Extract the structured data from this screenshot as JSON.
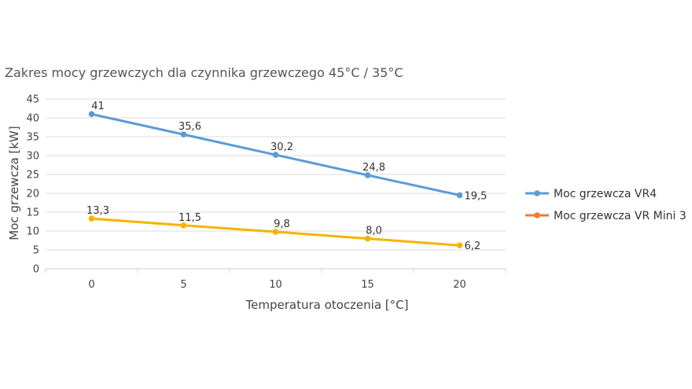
{
  "chart_data": {
    "type": "line",
    "title": "Zakres mocy grzewczych dla czynnika grzewczego 45°C / 35°C",
    "xlabel": "Temperatura otoczenia [°C]",
    "ylabel": "Moc grzewcza [kW]",
    "x": [
      0,
      5,
      10,
      15,
      20
    ],
    "x_tick_labels": [
      "0",
      "5",
      "10",
      "15",
      "20"
    ],
    "xlim": [
      -2.5,
      22.5
    ],
    "ylim": [
      0,
      45
    ],
    "y_ticks": [
      0,
      5,
      10,
      15,
      20,
      25,
      30,
      35,
      40,
      45
    ],
    "grid": true,
    "legend_position": "right",
    "series": [
      {
        "name": "Moc grzewcza VR4",
        "color": "#5b9bd5",
        "values": [
          41,
          35.6,
          30.2,
          24.8,
          19.5
        ],
        "labels": [
          "41",
          "35,6",
          "30,2",
          "24,8",
          "19,5"
        ]
      },
      {
        "name": "Moc grzewcza VR Mini 3",
        "color": "#f5b400",
        "legend_color": "#ed7d31",
        "values": [
          13.3,
          11.5,
          9.8,
          8.0,
          6.2
        ],
        "labels": [
          "13,3",
          "11,5",
          "9,8",
          "8,0",
          "6,2"
        ]
      }
    ]
  }
}
